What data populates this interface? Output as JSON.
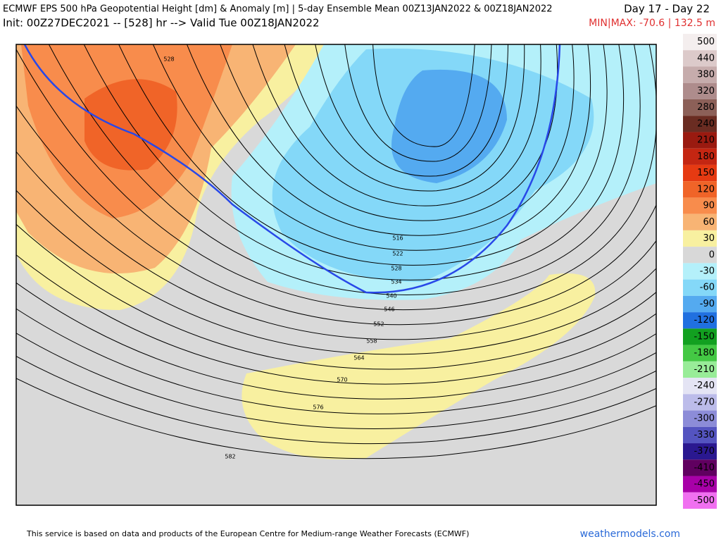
{
  "header": {
    "title": "ECMWF EPS 500 hPa Geopotential Height [dm] & Anomaly [m] | 5-day Ensemble Mean 00Z13JAN2022 & 00Z18JAN2022",
    "day_range": "Day 17 - Day 22",
    "init": "Init: 00Z27DEC2021 -- [528] hr --> Valid Tue 00Z18JAN2022",
    "minmax": "MIN|MAX: -70.6 | 132.5 m"
  },
  "colorbar": {
    "values": [
      500,
      440,
      380,
      320,
      280,
      240,
      210,
      180,
      150,
      120,
      90,
      60,
      30,
      0,
      -30,
      -60,
      -90,
      -120,
      -150,
      -180,
      -210,
      -240,
      -270,
      -300,
      -330,
      -370,
      -410,
      -450,
      -500
    ],
    "colors": [
      "#f4eeee",
      "#dccaca",
      "#c6acac",
      "#ae8c8c",
      "#8c6058",
      "#6a2c22",
      "#9a1a10",
      "#c42612",
      "#e63a12",
      "#f06428",
      "#f88c4c",
      "#f8b474",
      "#f8f0a0",
      "#d8d8d8",
      "#b4f0fa",
      "#84d8f8",
      "#54aaf0",
      "#2070e0",
      "#12a020",
      "#44c844",
      "#98ec98",
      "#e4e4f4",
      "#bcbcea",
      "#8c8cd8",
      "#5454c0",
      "#2a1890",
      "#600060",
      "#a800a8",
      "#f070f0"
    ]
  },
  "contour_labels": [
    528,
    516,
    522,
    528,
    534,
    540,
    546,
    552,
    558,
    564,
    570,
    576,
    582
  ],
  "footer": {
    "notice": "This service is based on data and products of the European Centre for Medium-range Weather Forecasts (ECMWF)",
    "site": "weathermodels.com"
  }
}
